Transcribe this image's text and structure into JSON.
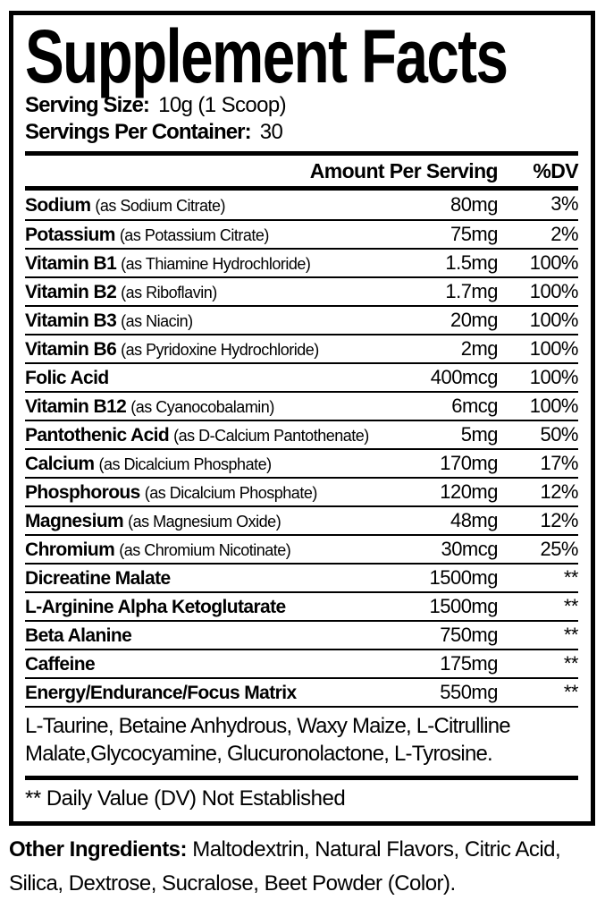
{
  "colors": {
    "ink": "#000000",
    "background": "#ffffff"
  },
  "panel": {
    "title": "Supplement Facts",
    "serving_size_label": "Serving Size:",
    "serving_size_value": "10g (1 Scoop)",
    "servings_per_container_label": "Servings Per Container:",
    "servings_per_container_value": "30",
    "header": {
      "amount": "Amount Per Serving",
      "dv": "%DV"
    },
    "rows": [
      {
        "name": "Sodium",
        "qualifier": "(as Sodium Citrate)",
        "amount": "80mg",
        "dv": "3%"
      },
      {
        "name": "Potassium",
        "qualifier": "(as Potassium Citrate)",
        "amount": "75mg",
        "dv": "2%"
      },
      {
        "name": "Vitamin B1",
        "qualifier": "(as Thiamine Hydrochloride)",
        "amount": "1.5mg",
        "dv": "100%"
      },
      {
        "name": "Vitamin B2",
        "qualifier": "(as Riboflavin)",
        "amount": "1.7mg",
        "dv": "100%"
      },
      {
        "name": "Vitamin B3",
        "qualifier": "(as Niacin)",
        "amount": "20mg",
        "dv": "100%"
      },
      {
        "name": "Vitamin B6",
        "qualifier": "(as Pyridoxine Hydrochloride)",
        "amount": "2mg",
        "dv": "100%"
      },
      {
        "name": "Folic Acid",
        "qualifier": "",
        "amount": "400mcg",
        "dv": "100%"
      },
      {
        "name": "Vitamin B12",
        "qualifier": "(as Cyanocobalamin)",
        "amount": "6mcg",
        "dv": "100%"
      },
      {
        "name": "Pantothenic Acid",
        "qualifier": "(as D-Calcium Pantothenate)",
        "amount": "5mg",
        "dv": "50%"
      },
      {
        "name": "Calcium",
        "qualifier": "(as Dicalcium Phosphate)",
        "amount": "170mg",
        "dv": "17%"
      },
      {
        "name": "Phosphorous",
        "qualifier": "(as Dicalcium Phosphate)",
        "amount": "120mg",
        "dv": "12%"
      },
      {
        "name": "Magnesium",
        "qualifier": "(as Magnesium Oxide)",
        "amount": "48mg",
        "dv": "12%"
      },
      {
        "name": "Chromium",
        "qualifier": "(as Chromium Nicotinate)",
        "amount": "30mcg",
        "dv": "25%"
      },
      {
        "name": "Dicreatine Malate",
        "qualifier": "",
        "amount": "1500mg",
        "dv": "**"
      },
      {
        "name": "L-Arginine Alpha Ketoglutarate",
        "qualifier": "",
        "amount": "1500mg",
        "dv": "**"
      },
      {
        "name": "Beta Alanine",
        "qualifier": "",
        "amount": "750mg",
        "dv": "**"
      },
      {
        "name": "Caffeine",
        "qualifier": "",
        "amount": "175mg",
        "dv": "**"
      },
      {
        "name": "Energy/Endurance/Focus Matrix",
        "qualifier": "",
        "amount": "550mg",
        "dv": "**"
      }
    ],
    "blend_note": "L-Taurine, Betaine Anhydrous, Waxy Maize,  L-Citrulline Malate,Glycocyamine, Glucuronolactone, L-Tyrosine.",
    "footnote": "** Daily Value (DV) Not Established"
  },
  "other_ingredients": {
    "label": "Other Ingredients:",
    "value": "Maltodextrin, Natural Flavors, Citric Acid, Silica, Dextrose, Sucralose, Beet Powder (Color)."
  }
}
